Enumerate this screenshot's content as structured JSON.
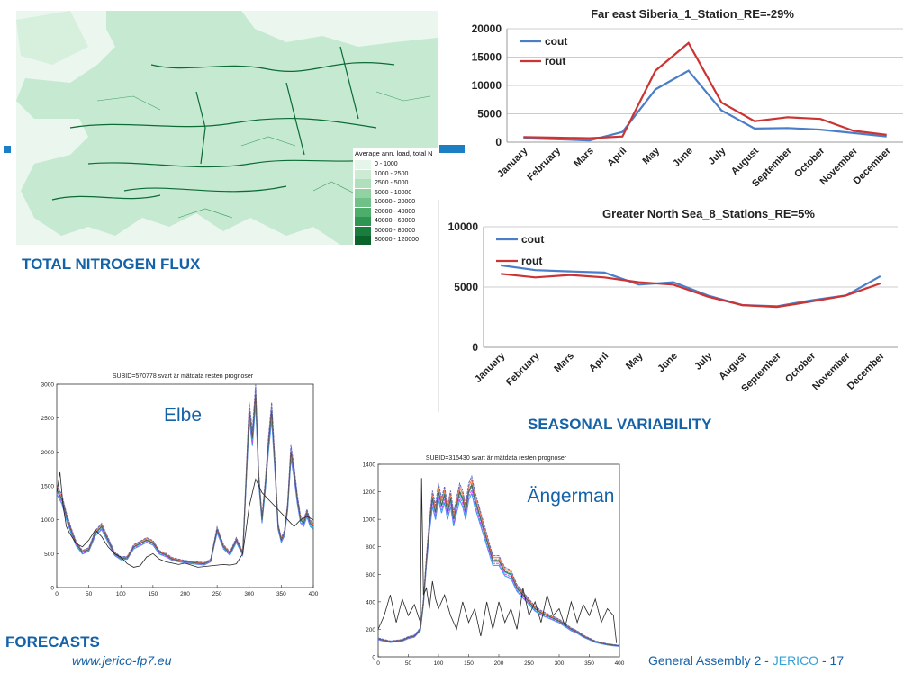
{
  "map": {
    "caption": "TOTAL NITROGEN FLUX",
    "legend_title": "Average ann. load, total N",
    "legend_items": [
      {
        "label": "0 - 1000",
        "color": "#e6f5e9"
      },
      {
        "label": "1000 - 2500",
        "color": "#cdebd4"
      },
      {
        "label": "2500 - 5000",
        "color": "#b0dfbc"
      },
      {
        "label": "5000 - 10000",
        "color": "#91d2a2"
      },
      {
        "label": "10000 - 20000",
        "color": "#6fc187"
      },
      {
        "label": "20000 - 40000",
        "color": "#4dad6b"
      },
      {
        "label": "40000 - 60000",
        "color": "#2f9552"
      },
      {
        "label": "60000 - 80000",
        "color": "#1a7c3d"
      },
      {
        "label": "80000 - 120000",
        "color": "#0b632c"
      }
    ]
  },
  "seasonal_caption": "SEASONAL VARIABILITY",
  "forecasts_caption": "FORECASTS",
  "footer": {
    "url": "www.jerico-fp7.eu",
    "left_text": "General Assembly 2 - ",
    "brand": "JERICO",
    "sep": " - ",
    "page": "17"
  },
  "colors": {
    "accent": "#1462a8",
    "cout": "#4a7ec8",
    "rout": "#cc3333"
  },
  "chart_data": [
    {
      "type": "line",
      "title": "Far east Siberia_1_Station_RE=-29%",
      "categories": [
        "January",
        "February",
        "Mars",
        "April",
        "May",
        "June",
        "July",
        "August",
        "September",
        "October",
        "November",
        "December"
      ],
      "series": [
        {
          "name": "cout",
          "values": [
            700,
            500,
            300,
            1800,
            9300,
            12600,
            5600,
            2400,
            2500,
            2200,
            1600,
            1000
          ]
        },
        {
          "name": "rout",
          "values": [
            900,
            800,
            700,
            1000,
            12600,
            17500,
            7000,
            3700,
            4400,
            4100,
            2000,
            1300
          ]
        }
      ],
      "yticks": [
        "0",
        "5000",
        "10000",
        "15000",
        "20000"
      ],
      "ylim": [
        0,
        20000
      ]
    },
    {
      "type": "line",
      "title": "Greater North Sea_8_Stations_RE=5%",
      "categories": [
        "January",
        "February",
        "Mars",
        "April",
        "May",
        "June",
        "July",
        "August",
        "September",
        "October",
        "November",
        "December"
      ],
      "series": [
        {
          "name": "cout",
          "values": [
            6800,
            6400,
            6300,
            6200,
            5200,
            5400,
            4300,
            3500,
            3400,
            3900,
            4300,
            5900
          ]
        },
        {
          "name": "rout",
          "values": [
            6100,
            5800,
            6000,
            5800,
            5400,
            5200,
            4200,
            3500,
            3350,
            3800,
            4300,
            5300
          ]
        }
      ],
      "yticks": [
        "0",
        "5000",
        "10000"
      ],
      "ylim": [
        0,
        10000
      ]
    },
    {
      "type": "line",
      "title": "SUBID=570778 svart är mätdata resten prognoser",
      "annotation": "Elbe",
      "xticks": [
        "0",
        "50",
        "100",
        "150",
        "200",
        "250",
        "300",
        "350",
        "400"
      ],
      "yticks": [
        "0",
        "500",
        "1000",
        "1500",
        "2000",
        "2500",
        "3000"
      ],
      "xlim": [
        0,
        400
      ],
      "ylim": [
        0,
        3000
      ],
      "series": [
        {
          "x": [
            0,
            8,
            15,
            22,
            30,
            40,
            50,
            60,
            70,
            80,
            90,
            100,
            110,
            120,
            130,
            140,
            150,
            160,
            170,
            180,
            190,
            200,
            210,
            220,
            230,
            240,
            250,
            260,
            270,
            280,
            290,
            300,
            305,
            310,
            315,
            320,
            325,
            330,
            335,
            340,
            345,
            350,
            355,
            360,
            365,
            370,
            375,
            380,
            385,
            390,
            395,
            400
          ],
          "y": [
            1450,
            1300,
            1050,
            850,
            650,
            520,
            560,
            800,
            900,
            700,
            500,
            430,
            440,
            600,
            650,
            700,
            660,
            520,
            480,
            420,
            400,
            380,
            370,
            360,
            350,
            400,
            850,
            600,
            500,
            700,
            500,
            2600,
            2200,
            2850,
            1600,
            1000,
            1500,
            2100,
            2600,
            1800,
            900,
            700,
            800,
            1200,
            2000,
            1700,
            1300,
            1000,
            950,
            1100,
            950,
            900
          ]
        },
        {
          "x": [
            0,
            5,
            10,
            15,
            20,
            30,
            40,
            50,
            60,
            70,
            80,
            90,
            100,
            110,
            120,
            130,
            140,
            150,
            160,
            170,
            180,
            190,
            200,
            210,
            220,
            230,
            240,
            250,
            260,
            270,
            280,
            290,
            300,
            310,
            320,
            330,
            340,
            350,
            360,
            370,
            380,
            390,
            400
          ],
          "y": [
            1400,
            1700,
            1200,
            900,
            800,
            650,
            600,
            700,
            850,
            750,
            600,
            500,
            450,
            350,
            300,
            320,
            450,
            500,
            420,
            380,
            360,
            340,
            360,
            330,
            300,
            310,
            320,
            330,
            340,
            330,
            350,
            500,
            1200,
            1600,
            1400,
            1300,
            1200,
            1100,
            1000,
            900,
            1000,
            1050,
            1000
          ]
        }
      ]
    },
    {
      "type": "line",
      "title": "SUBID=315430 svart är mätdata resten prognoser",
      "annotation": "Ängerman",
      "xticks": [
        "0",
        "50",
        "100",
        "150",
        "200",
        "250",
        "300",
        "350",
        "400"
      ],
      "yticks": [
        "0",
        "200",
        "400",
        "600",
        "800",
        "1000",
        "1200",
        "1400"
      ],
      "xlim": [
        0,
        400
      ],
      "ylim": [
        0,
        1400
      ],
      "series": [
        {
          "x": [
            0,
            10,
            20,
            30,
            40,
            50,
            60,
            70,
            75,
            80,
            85,
            90,
            95,
            100,
            105,
            110,
            115,
            120,
            125,
            130,
            135,
            140,
            145,
            150,
            155,
            160,
            170,
            180,
            190,
            200,
            210,
            220,
            230,
            240,
            250,
            260,
            270,
            280,
            290,
            300,
            310,
            320,
            330,
            340,
            350,
            360,
            370,
            380,
            390,
            400
          ],
          "y": [
            130,
            120,
            110,
            115,
            120,
            140,
            150,
            200,
            400,
            700,
            950,
            1150,
            1050,
            1200,
            1100,
            1180,
            1050,
            1150,
            1000,
            1100,
            1200,
            1150,
            1050,
            1200,
            1250,
            1150,
            1000,
            850,
            700,
            700,
            620,
            600,
            500,
            450,
            400,
            350,
            320,
            300,
            280,
            260,
            230,
            200,
            180,
            150,
            130,
            110,
            100,
            90,
            85,
            80
          ]
        },
        {
          "x": [
            0,
            10,
            20,
            30,
            40,
            50,
            60,
            70,
            72,
            75,
            80,
            85,
            90,
            95,
            100,
            110,
            120,
            130,
            140,
            150,
            160,
            170,
            180,
            190,
            200,
            210,
            220,
            230,
            240,
            250,
            260,
            270,
            280,
            290,
            300,
            310,
            320,
            330,
            340,
            350,
            360,
            370,
            380,
            390,
            395
          ],
          "y": [
            200,
            300,
            450,
            250,
            420,
            300,
            380,
            250,
            1300,
            450,
            500,
            350,
            550,
            420,
            350,
            450,
            300,
            200,
            400,
            250,
            350,
            150,
            400,
            200,
            400,
            250,
            350,
            200,
            500,
            300,
            400,
            250,
            450,
            300,
            350,
            220,
            400,
            250,
            380,
            300,
            420,
            250,
            350,
            300,
            100
          ]
        }
      ]
    }
  ]
}
